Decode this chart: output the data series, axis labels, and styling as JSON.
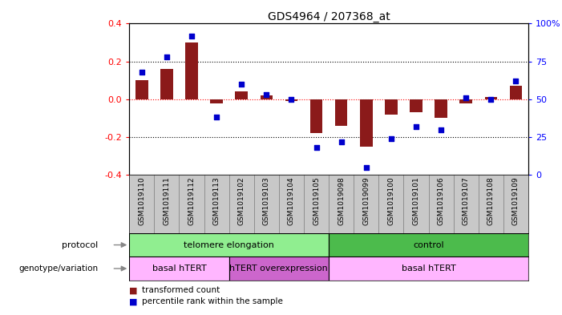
{
  "title": "GDS4964 / 207368_at",
  "samples": [
    "GSM1019110",
    "GSM1019111",
    "GSM1019112",
    "GSM1019113",
    "GSM1019102",
    "GSM1019103",
    "GSM1019104",
    "GSM1019105",
    "GSM1019098",
    "GSM1019099",
    "GSM1019100",
    "GSM1019101",
    "GSM1019106",
    "GSM1019107",
    "GSM1019108",
    "GSM1019109"
  ],
  "transformed_count": [
    0.1,
    0.16,
    0.3,
    -0.02,
    0.04,
    0.02,
    -0.01,
    -0.18,
    -0.14,
    -0.25,
    -0.08,
    -0.07,
    -0.1,
    -0.02,
    0.01,
    0.07
  ],
  "percentile_rank": [
    68,
    78,
    92,
    38,
    60,
    53,
    50,
    18,
    22,
    5,
    24,
    32,
    30,
    51,
    50,
    62
  ],
  "ylim_left": [
    -0.4,
    0.4
  ],
  "ylim_right": [
    0,
    100
  ],
  "yticks_left": [
    -0.4,
    -0.2,
    0.0,
    0.2,
    0.4
  ],
  "yticks_right": [
    0,
    25,
    50,
    75,
    100
  ],
  "ytick_labels_right": [
    "0",
    "25",
    "50",
    "75",
    "100%"
  ],
  "hline_dotted": [
    0.2,
    -0.2
  ],
  "hline_red_dotted": 0.0,
  "bar_color": "#8B1A1A",
  "dot_color": "#0000CC",
  "protocol_groups": [
    {
      "label": "telomere elongation",
      "start": 0,
      "end": 7,
      "color": "#90EE90"
    },
    {
      "label": "control",
      "start": 8,
      "end": 15,
      "color": "#4CBB4C"
    }
  ],
  "genotype_groups": [
    {
      "label": "basal hTERT",
      "start": 0,
      "end": 3,
      "color": "#FFB6FF"
    },
    {
      "label": "hTERT overexpression",
      "start": 4,
      "end": 7,
      "color": "#CC66CC"
    },
    {
      "label": "basal hTERT",
      "start": 8,
      "end": 15,
      "color": "#FFB6FF"
    }
  ],
  "legend_items": [
    {
      "label": "transformed count",
      "color": "#8B1A1A"
    },
    {
      "label": "percentile rank within the sample",
      "color": "#0000CC"
    }
  ],
  "protocol_label": "protocol",
  "genotype_label": "genotype/variation",
  "background_color": "#FFFFFF",
  "xlabel_bg": "#C8C8C8",
  "bar_width": 0.5
}
